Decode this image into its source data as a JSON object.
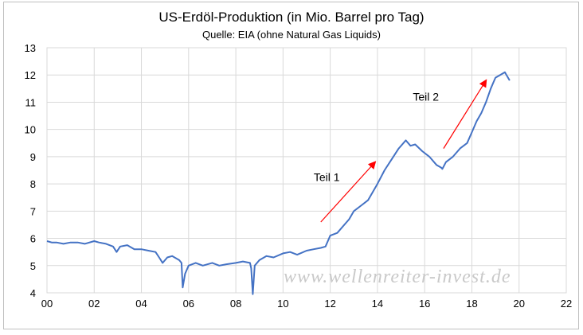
{
  "chart_data": {
    "type": "line",
    "title": "US-Erdöl-Produktion (in Mio. Barrel pro Tag)",
    "subtitle": "Quelle: EIA (ohne Natural Gas Liquids)",
    "xlabel": "",
    "ylabel": "",
    "xlim": [
      2000,
      2022
    ],
    "ylim": [
      4,
      13
    ],
    "grid": true,
    "x_ticks": [
      2000,
      2002,
      2004,
      2006,
      2008,
      2010,
      2012,
      2014,
      2016,
      2018,
      2020,
      2022
    ],
    "x_tick_labels": [
      "00",
      "02",
      "04",
      "06",
      "08",
      "10",
      "12",
      "14",
      "16",
      "18",
      "20",
      "22"
    ],
    "y_ticks": [
      4,
      5,
      6,
      7,
      8,
      9,
      10,
      11,
      12,
      13
    ],
    "y_tick_labels": [
      "4",
      "5",
      "6",
      "7",
      "8",
      "9",
      "10",
      "11",
      "12",
      "13"
    ],
    "line_color": "#4472C4",
    "arrow_color": "#ff0000",
    "series": [
      {
        "x": [
          2000.0,
          2000.2,
          2000.4,
          2000.7,
          2001.0,
          2001.3,
          2001.6,
          2002.0,
          2002.2,
          2002.5,
          2002.8,
          2002.95,
          2003.1,
          2003.4,
          2003.7,
          2004.0,
          2004.3,
          2004.6,
          2004.75,
          2004.9,
          2005.1,
          2005.3,
          2005.6,
          2005.7,
          2005.75,
          2005.85,
          2006.0,
          2006.3,
          2006.6,
          2007.0,
          2007.3,
          2007.6,
          2008.0,
          2008.3,
          2008.6,
          2008.65,
          2008.72,
          2008.8,
          2009.0,
          2009.3,
          2009.6,
          2010.0,
          2010.3,
          2010.6,
          2011.0,
          2011.3,
          2011.6,
          2011.8,
          2012.0,
          2012.3,
          2012.6,
          2012.8,
          2013.0,
          2013.3,
          2013.6,
          2014.0,
          2014.3,
          2014.6,
          2014.9,
          2015.2,
          2015.4,
          2015.6,
          2015.9,
          2016.2,
          2016.5,
          2016.7,
          2016.75,
          2016.9,
          2017.2,
          2017.5,
          2017.8,
          2018.0,
          2018.2,
          2018.4,
          2018.6,
          2018.8,
          2018.9,
          2019.0,
          2019.2,
          2019.4,
          2019.6
        ],
        "y": [
          5.9,
          5.85,
          5.85,
          5.8,
          5.85,
          5.85,
          5.8,
          5.9,
          5.85,
          5.8,
          5.7,
          5.5,
          5.7,
          5.75,
          5.6,
          5.6,
          5.55,
          5.5,
          5.3,
          5.1,
          5.3,
          5.35,
          5.2,
          5.1,
          4.2,
          4.7,
          5.0,
          5.1,
          5.0,
          5.1,
          5.0,
          5.05,
          5.1,
          5.15,
          5.1,
          4.9,
          3.95,
          5.0,
          5.2,
          5.35,
          5.3,
          5.45,
          5.5,
          5.4,
          5.55,
          5.6,
          5.65,
          5.7,
          6.1,
          6.2,
          6.5,
          6.7,
          7.0,
          7.2,
          7.4,
          8.0,
          8.5,
          8.9,
          9.3,
          9.6,
          9.4,
          9.45,
          9.2,
          9.0,
          8.7,
          8.6,
          8.55,
          8.8,
          9.0,
          9.3,
          9.5,
          9.9,
          10.3,
          10.6,
          11.0,
          11.5,
          11.7,
          11.9,
          12.0,
          12.1,
          11.8
        ]
      }
    ],
    "annotations": [
      {
        "text": "Teil 1",
        "x": 2011.3,
        "y": 8.1
      },
      {
        "text": "Teil 2",
        "x": 2015.5,
        "y": 11.05
      }
    ],
    "arrows": [
      {
        "from": [
          2011.6,
          6.6
        ],
        "to": [
          2013.9,
          8.8
        ]
      },
      {
        "from": [
          2016.8,
          9.3
        ],
        "to": [
          2018.6,
          11.8
        ]
      }
    ],
    "watermark": "www.wellenreiter-invest.de"
  }
}
